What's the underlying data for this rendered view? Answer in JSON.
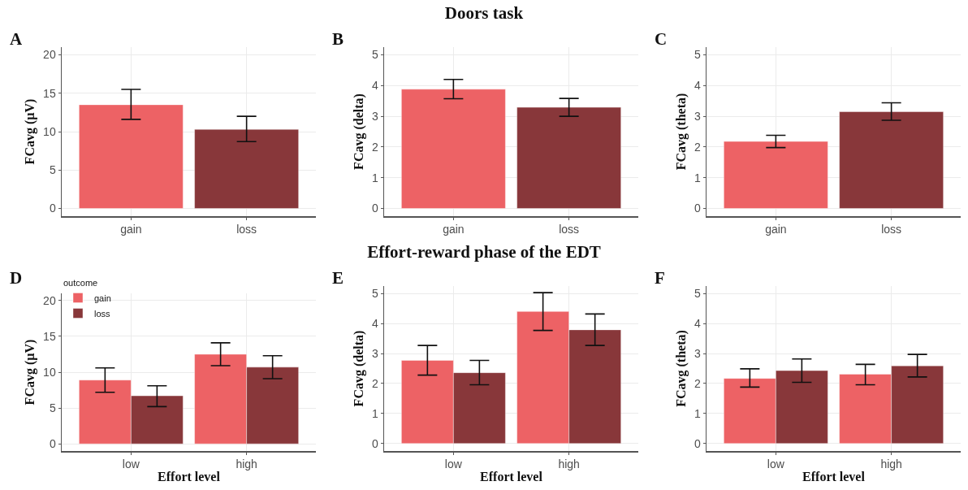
{
  "chart_data": [
    {
      "type": "bar",
      "title": "A",
      "annotations": [
        "Doors task"
      ],
      "ylabel": "FCavg (µV)",
      "categories": [
        "gain",
        "loss"
      ],
      "values": [
        13.5,
        10.3
      ],
      "colors": [
        "#ed6265",
        "#88373a"
      ],
      "errors": [
        [
          11.6,
          15.5
        ],
        [
          8.7,
          12.0
        ]
      ],
      "ylim": [
        -1,
        21
      ],
      "yticks": [
        0,
        5,
        10,
        15,
        20
      ],
      "grid": true,
      "legend": false
    },
    {
      "type": "bar",
      "title": "B",
      "ylabel": "FCavg (delta)",
      "categories": [
        "gain",
        "loss"
      ],
      "values": [
        3.88,
        3.29
      ],
      "colors": [
        "#ed6265",
        "#88373a"
      ],
      "errors": [
        [
          3.57,
          4.2
        ],
        [
          3.0,
          3.58
        ]
      ],
      "ylim": [
        -0.25,
        5.25
      ],
      "yticks": [
        0,
        1,
        2,
        3,
        4,
        5
      ],
      "grid": true,
      "legend": false
    },
    {
      "type": "bar",
      "title": "C",
      "ylabel": "FCavg (theta)",
      "categories": [
        "gain",
        "loss"
      ],
      "values": [
        2.18,
        3.15
      ],
      "colors": [
        "#ed6265",
        "#88373a"
      ],
      "errors": [
        [
          1.98,
          2.38
        ],
        [
          2.87,
          3.44
        ]
      ],
      "ylim": [
        -0.25,
        5.25
      ],
      "yticks": [
        0,
        1,
        2,
        3,
        4,
        5
      ],
      "grid": true,
      "legend": false
    },
    {
      "type": "bar",
      "title": "D",
      "annotations": [
        "Effort-reward phase of the EDT"
      ],
      "xlabel": "Effort level",
      "ylabel": "FCavg (µV)",
      "legend_title": "outcome",
      "categories": [
        "low",
        "high"
      ],
      "series": [
        {
          "name": "gain",
          "color": "#ed6265",
          "values": [
            8.9,
            12.5
          ],
          "errors": [
            [
              7.2,
              10.6
            ],
            [
              10.9,
              14.1
            ]
          ]
        },
        {
          "name": "loss",
          "color": "#88373a",
          "values": [
            6.7,
            10.7
          ],
          "errors": [
            [
              5.2,
              8.1
            ],
            [
              9.1,
              12.3
            ]
          ]
        }
      ],
      "ylim": [
        -1,
        21
      ],
      "yticks": [
        0,
        5,
        10,
        15,
        20
      ],
      "grid": true,
      "legend": "top left"
    },
    {
      "type": "bar",
      "title": "E",
      "xlabel": "Effort level",
      "ylabel": "FCavg (delta)",
      "categories": [
        "low",
        "high"
      ],
      "series": [
        {
          "color": "#ed6265",
          "values": [
            2.77,
            4.4
          ],
          "errors": [
            [
              2.28,
              3.27
            ],
            [
              3.77,
              5.03
            ]
          ]
        },
        {
          "color": "#88373a",
          "values": [
            2.36,
            3.79
          ],
          "errors": [
            [
              1.96,
              2.77
            ],
            [
              3.27,
              4.32
            ]
          ]
        }
      ],
      "ylim": [
        -0.25,
        5.25
      ],
      "yticks": [
        0,
        1,
        2,
        3,
        4,
        5
      ],
      "grid": true,
      "legend": false
    },
    {
      "type": "bar",
      "title": "F",
      "xlabel": "Effort level",
      "ylabel": "FCavg (theta)",
      "categories": [
        "low",
        "high"
      ],
      "series": [
        {
          "color": "#ed6265",
          "values": [
            2.17,
            2.31
          ],
          "errors": [
            [
              1.88,
              2.49
            ],
            [
              1.96,
              2.64
            ]
          ]
        },
        {
          "color": "#88373a",
          "values": [
            2.43,
            2.59
          ],
          "errors": [
            [
              2.04,
              2.82
            ],
            [
              2.22,
              2.97
            ]
          ]
        }
      ],
      "ylim": [
        -0.25,
        5.25
      ],
      "yticks": [
        0,
        1,
        2,
        3,
        4,
        5
      ],
      "grid": true,
      "legend": false
    }
  ]
}
